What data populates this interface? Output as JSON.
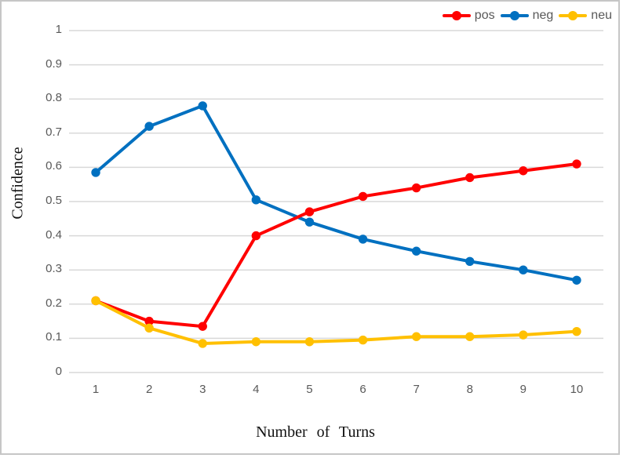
{
  "window": {
    "background_color": "#FFFFFF",
    "border_color": "#C6C6C6"
  },
  "styles": {
    "gridline_color": "#D9D9D9",
    "tick_label_color": "#595959",
    "legend_text_color": "#595959",
    "axis_title_color": "#111111"
  },
  "chart_data": {
    "type": "line",
    "title": "",
    "xlabel": "Number of Turns",
    "ylabel": "Confidence",
    "x": [
      1,
      2,
      3,
      4,
      5,
      6,
      7,
      8,
      9,
      10
    ],
    "x_tick_labels": [
      "1",
      "2",
      "3",
      "4",
      "5",
      "6",
      "7",
      "8",
      "9",
      "10"
    ],
    "ylim": [
      0,
      1
    ],
    "yticks": [
      0,
      0.1,
      0.2,
      0.3,
      0.4,
      0.5,
      0.6,
      0.7,
      0.8,
      0.9,
      1
    ],
    "y_tick_labels": [
      "0",
      "0.1",
      "0.2",
      "0.3",
      "0.4",
      "0.5",
      "0.6",
      "0.7",
      "0.8",
      "0.9",
      "1"
    ],
    "grid": "horizontal-major",
    "legend_position": "top-right",
    "series": [
      {
        "name": "pos",
        "color": "#FF0000",
        "values": [
          0.21,
          0.15,
          0.135,
          0.4,
          0.47,
          0.515,
          0.54,
          0.57,
          0.59,
          0.61
        ]
      },
      {
        "name": "neg",
        "color": "#0070C0",
        "values": [
          0.585,
          0.72,
          0.78,
          0.505,
          0.44,
          0.39,
          0.355,
          0.325,
          0.3,
          0.27
        ]
      },
      {
        "name": "neu",
        "color": "#FFC000",
        "values": [
          0.21,
          0.13,
          0.085,
          0.09,
          0.09,
          0.095,
          0.105,
          0.105,
          0.11,
          0.12
        ]
      }
    ],
    "draw_order": [
      "neg",
      "pos",
      "neu"
    ],
    "marker": "circle",
    "line_width": 4
  }
}
